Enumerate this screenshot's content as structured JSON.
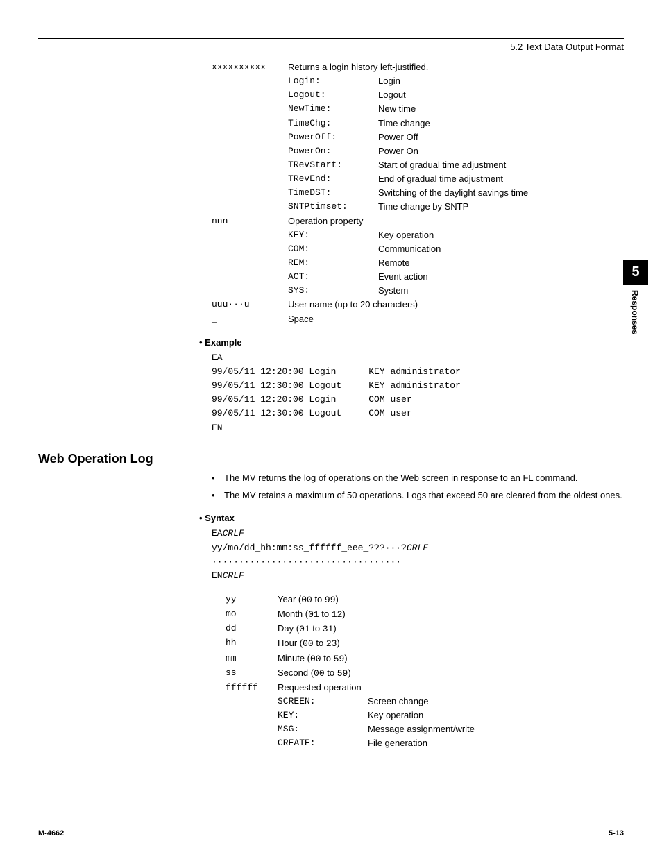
{
  "header": {
    "section": "5.2  Text Data Output Format"
  },
  "table1": {
    "rows": [
      {
        "a": "xxxxxxxxxx",
        "b": "",
        "c": "Returns a login history left-justified."
      },
      {
        "a": "",
        "b": "Login:",
        "c": "Login"
      },
      {
        "a": "",
        "b": "Logout:",
        "c": "Logout"
      },
      {
        "a": "",
        "b": "NewTime:",
        "c": "New time"
      },
      {
        "a": "",
        "b": "TimeChg:",
        "c": "Time change"
      },
      {
        "a": "",
        "b": "PowerOff:",
        "c": "Power Off"
      },
      {
        "a": "",
        "b": "PowerOn:",
        "c": "Power On"
      },
      {
        "a": "",
        "b": "TRevStart:",
        "c": "Start of gradual time adjustment"
      },
      {
        "a": "",
        "b": "TRevEnd:",
        "c": "End of gradual time adjustment"
      },
      {
        "a": "",
        "b": "TimeDST:",
        "c": "Switching of the daylight savings time"
      },
      {
        "a": "",
        "b": "SNTPtimset:",
        "c": "Time change by SNTP"
      },
      {
        "a": "nnn",
        "b": "",
        "c": "Operation property"
      },
      {
        "a": "",
        "b": "KEY:",
        "c": "Key operation"
      },
      {
        "a": "",
        "b": "COM:",
        "c": "Communication"
      },
      {
        "a": "",
        "b": "REM:",
        "c": "Remote"
      },
      {
        "a": "",
        "b": "ACT:",
        "c": "Event action"
      },
      {
        "a": "",
        "b": "SYS:",
        "c": "System"
      },
      {
        "a": "uuu···u",
        "b": "",
        "c": "User name (up to 20 characters)"
      },
      {
        "a": "_",
        "b": "",
        "c": "Space"
      }
    ]
  },
  "example": {
    "heading": "Example",
    "lines": [
      "EA",
      "99/05/11 12:20:00 Login      KEY administrator",
      "99/05/11 12:30:00 Logout     KEY administrator",
      "99/05/11 12:20:00 Login      COM user",
      "99/05/11 12:30:00 Logout     COM user",
      "EN"
    ]
  },
  "section2": {
    "title": "Web Operation Log",
    "bullets": [
      "The MV returns the log of operations on the Web screen in response to an FL command.",
      "The MV retains a maximum of 50 operations. Logs that exceed 50 are cleared from the oldest ones."
    ]
  },
  "syntax": {
    "heading": "Syntax",
    "l1a": "EA",
    "l1b": "CRLF",
    "l2a": "yy/mo/dd_hh:mm:ss_ffffff_eee_???···?",
    "l2b": "CRLF",
    "l3": "···································",
    "l4a": "EN",
    "l4b": "CRLF"
  },
  "params": {
    "rows": [
      {
        "a": "yy",
        "label": "Year (",
        "r1": "00",
        "mid": " to ",
        "r2": "99",
        "end": ")"
      },
      {
        "a": "mo",
        "label": "Month (",
        "r1": "01",
        "mid": " to ",
        "r2": "12",
        "end": ")"
      },
      {
        "a": "dd",
        "label": "Day (",
        "r1": "01",
        "mid": " to ",
        "r2": "31",
        "end": ")"
      },
      {
        "a": "hh",
        "label": "Hour (",
        "r1": "00",
        "mid": " to ",
        "r2": "23",
        "end": ")"
      },
      {
        "a": "mm",
        "label": "Minute (",
        "r1": "00",
        "mid": " to ",
        "r2": "59",
        "end": ")"
      },
      {
        "a": "ss",
        "label": "Second (",
        "r1": "00",
        "mid": " to ",
        "r2": "59",
        "end": ")"
      }
    ],
    "ffffff": {
      "a": "ffffff",
      "label": "Requested operation"
    },
    "sub": [
      {
        "b": "SCREEN:",
        "c": "Screen change"
      },
      {
        "b": "KEY:",
        "c": "Key operation"
      },
      {
        "b": "MSG:",
        "c": "Message assignment/write"
      },
      {
        "b": "CREATE:",
        "c": "File generation"
      }
    ]
  },
  "sidetab": {
    "num": "5",
    "label": "Responses"
  },
  "footer": {
    "left": "M-4662",
    "right": "5-13"
  }
}
